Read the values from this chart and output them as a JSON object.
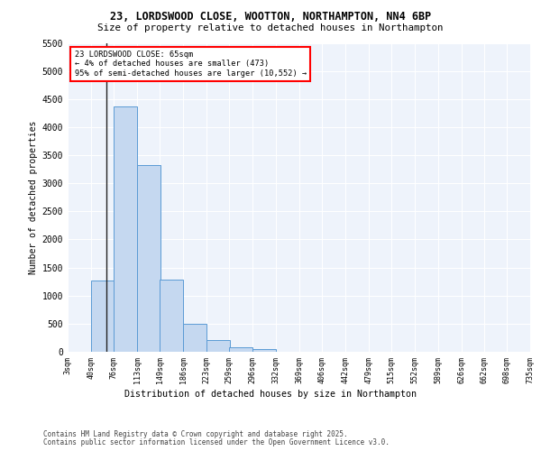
{
  "title_line1": "23, LORDSWOOD CLOSE, WOOTTON, NORTHAMPTON, NN4 6BP",
  "title_line2": "Size of property relative to detached houses in Northampton",
  "xlabel": "Distribution of detached houses by size in Northampton",
  "ylabel": "Number of detached properties",
  "footer_line1": "Contains HM Land Registry data © Crown copyright and database right 2025.",
  "footer_line2": "Contains public sector information licensed under the Open Government Licence v3.0.",
  "annotation_title": "23 LORDSWOOD CLOSE: 65sqm",
  "annotation_line2": "← 4% of detached houses are smaller (473)",
  "annotation_line3": "95% of semi-detached houses are larger (10,552) →",
  "bar_left_edges": [
    3,
    40,
    76,
    113,
    149,
    186,
    223,
    259,
    296,
    332,
    369,
    406,
    442,
    479,
    515,
    552,
    589,
    626,
    662,
    698
  ],
  "bar_heights": [
    0,
    1270,
    4370,
    3320,
    1280,
    500,
    210,
    80,
    55,
    0,
    0,
    0,
    0,
    0,
    0,
    0,
    0,
    0,
    0,
    0
  ],
  "bin_width": 37,
  "x_tick_labels": [
    "3sqm",
    "40sqm",
    "76sqm",
    "113sqm",
    "149sqm",
    "186sqm",
    "223sqm",
    "259sqm",
    "296sqm",
    "332sqm",
    "369sqm",
    "406sqm",
    "442sqm",
    "479sqm",
    "515sqm",
    "552sqm",
    "589sqm",
    "626sqm",
    "662sqm",
    "698sqm",
    "735sqm"
  ],
  "x_tick_positions": [
    3,
    40,
    76,
    113,
    149,
    186,
    223,
    259,
    296,
    332,
    369,
    406,
    442,
    479,
    515,
    552,
    589,
    626,
    662,
    698,
    735
  ],
  "ylim": [
    0,
    5500
  ],
  "yticks": [
    0,
    500,
    1000,
    1500,
    2000,
    2500,
    3000,
    3500,
    4000,
    4500,
    5000,
    5500
  ],
  "xlim": [
    3,
    735
  ],
  "bar_color": "#c5d8f0",
  "bar_edge_color": "#5b9bd5",
  "bg_color": "#eef3fb",
  "grid_color": "#ffffff",
  "property_line_x": 65
}
